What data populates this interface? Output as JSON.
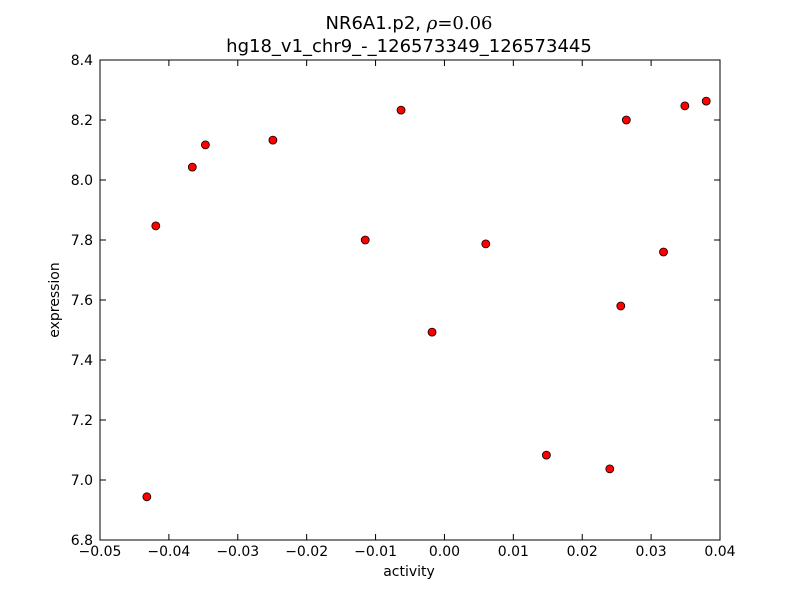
{
  "chart_data": {
    "type": "scatter",
    "title_line1_prefix": "NR6A1.p2, ",
    "title_rho_symbol": "ρ",
    "title_rho_value": "=0.06",
    "title_line2": "hg18_v1_chr9_-_126573349_126573445",
    "xlabel": "activity",
    "ylabel": "expression",
    "xlim": [
      -0.05,
      0.04
    ],
    "ylim": [
      6.8,
      8.4
    ],
    "xticks": [
      -0.05,
      -0.04,
      -0.03,
      -0.02,
      -0.01,
      0.0,
      0.01,
      0.02,
      0.03,
      0.04
    ],
    "xtick_labels": [
      "−0.05",
      "−0.04",
      "−0.03",
      "−0.02",
      "−0.01",
      "0.00",
      "0.01",
      "0.02",
      "0.03",
      "0.04"
    ],
    "yticks": [
      6.8,
      7.0,
      7.2,
      7.4,
      7.6,
      7.8,
      8.0,
      8.2,
      8.4
    ],
    "ytick_labels": [
      "6.8",
      "7.0",
      "7.2",
      "7.4",
      "7.6",
      "7.8",
      "8.0",
      "8.2",
      "8.4"
    ],
    "grid": false,
    "marker_color": "#ff0000",
    "marker_edge_color": "#000000",
    "points": [
      {
        "x": -0.0432,
        "y": 6.944
      },
      {
        "x": -0.0419,
        "y": 7.847
      },
      {
        "x": -0.0366,
        "y": 8.043
      },
      {
        "x": -0.0347,
        "y": 8.117
      },
      {
        "x": -0.0249,
        "y": 8.133
      },
      {
        "x": -0.0115,
        "y": 7.8
      },
      {
        "x": -0.0063,
        "y": 8.233
      },
      {
        "x": -0.0018,
        "y": 7.493
      },
      {
        "x": 0.006,
        "y": 7.787
      },
      {
        "x": 0.0148,
        "y": 7.083
      },
      {
        "x": 0.024,
        "y": 7.037
      },
      {
        "x": 0.0256,
        "y": 7.58
      },
      {
        "x": 0.0264,
        "y": 8.2
      },
      {
        "x": 0.0318,
        "y": 7.76
      },
      {
        "x": 0.0349,
        "y": 8.247
      },
      {
        "x": 0.038,
        "y": 8.263
      }
    ]
  }
}
